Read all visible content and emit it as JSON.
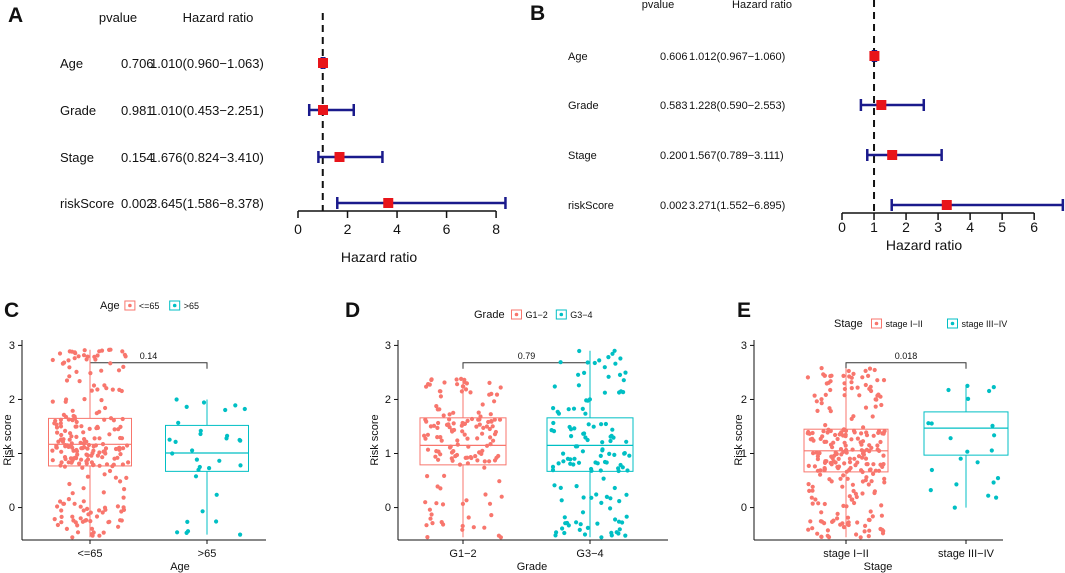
{
  "colors": {
    "ci": "#1a1a8c",
    "point": "#e8141a",
    "pink": "#f8766d",
    "teal": "#00bfc4",
    "axis": "#111111"
  },
  "chart_data": [
    {
      "panel": "A",
      "type": "forest",
      "col_pvalue": "pvalue",
      "col_hr": "Hazard ratio",
      "xlabel": "Hazard ratio",
      "xlim": [
        0,
        8.4
      ],
      "ticks": [
        0,
        2,
        4,
        6,
        8
      ],
      "ticklabels": [
        "0",
        "2",
        "4",
        "6",
        "8"
      ],
      "ref_line": 1,
      "rows": [
        {
          "name": "Age",
          "p": "0.706",
          "hr_text": "1.010(0.960−1.063)",
          "hr": 1.01,
          "lo": 0.96,
          "hi": 1.063
        },
        {
          "name": "Grade",
          "p": "0.981",
          "hr_text": "1.010(0.453−2.251)",
          "hr": 1.01,
          "lo": 0.453,
          "hi": 2.251
        },
        {
          "name": "Stage",
          "p": "0.154",
          "hr_text": "1.676(0.824−3.410)",
          "hr": 1.676,
          "lo": 0.824,
          "hi": 3.41
        },
        {
          "name": "riskScore",
          "p": "0.002",
          "hr_text": "3.645(1.586−8.378)",
          "hr": 3.645,
          "lo": 1.586,
          "hi": 8.378
        }
      ]
    },
    {
      "panel": "B",
      "type": "forest",
      "col_pvalue": "pvalue",
      "col_hr": "Hazard ratio",
      "xlabel": "Hazard ratio",
      "xlim": [
        0,
        6.9
      ],
      "ticks": [
        0,
        1,
        2,
        3,
        4,
        5,
        6
      ],
      "ticklabels": [
        "0",
        "1",
        "2",
        "3",
        "4",
        "5",
        "6"
      ],
      "ref_line": 1,
      "rows": [
        {
          "name": "Age",
          "p": "0.606",
          "hr_text": "1.012(0.967−1.060)",
          "hr": 1.012,
          "lo": 0.967,
          "hi": 1.06
        },
        {
          "name": "Grade",
          "p": "0.583",
          "hr_text": "1.228(0.590−2.553)",
          "hr": 1.228,
          "lo": 0.59,
          "hi": 2.553
        },
        {
          "name": "Stage",
          "p": "0.200",
          "hr_text": "1.567(0.789−3.111)",
          "hr": 1.567,
          "lo": 0.789,
          "hi": 3.111
        },
        {
          "name": "riskScore",
          "p": "0.002",
          "hr_text": "3.271(1.552−6.895)",
          "hr": 3.271,
          "lo": 1.552,
          "hi": 6.895
        }
      ]
    },
    {
      "panel": "C",
      "type": "box",
      "legend_title": "Age",
      "xlabel": "Age",
      "ylabel": "Risk score",
      "ylim": [
        -0.6,
        3.1
      ],
      "yticks": [
        0,
        1,
        2,
        3
      ],
      "pvalue": "0.14",
      "groups": [
        {
          "name": "<=65",
          "color": "pink",
          "min": -0.55,
          "q1": 0.77,
          "median": 1.17,
          "q3": 1.65,
          "max": 2.92,
          "n": 240
        },
        {
          "name": ">65",
          "color": "teal",
          "min": -0.5,
          "q1": 0.67,
          "median": 1.01,
          "q3": 1.52,
          "max": 2.0,
          "n": 32
        }
      ]
    },
    {
      "panel": "D",
      "type": "box",
      "legend_title": "Grade",
      "xlabel": "Grade",
      "ylabel": "Risk score",
      "ylim": [
        -0.6,
        3.1
      ],
      "yticks": [
        0,
        1,
        2,
        3
      ],
      "pvalue": "0.79",
      "groups": [
        {
          "name": "G1−2",
          "color": "pink",
          "min": -0.55,
          "q1": 0.79,
          "median": 1.15,
          "q3": 1.66,
          "max": 2.38,
          "n": 150
        },
        {
          "name": "G3−4",
          "color": "teal",
          "min": -0.55,
          "q1": 0.67,
          "median": 1.15,
          "q3": 1.66,
          "max": 2.9,
          "n": 130
        }
      ]
    },
    {
      "panel": "E",
      "type": "box",
      "legend_title": "Stage",
      "xlabel": "Stage",
      "ylabel": "Risk score",
      "ylim": [
        -0.6,
        3.1
      ],
      "yticks": [
        0,
        1,
        2,
        3
      ],
      "pvalue": "0.018",
      "groups": [
        {
          "name": "stage I−II",
          "color": "pink",
          "min": -0.55,
          "q1": 0.66,
          "median": 1.05,
          "q3": 1.45,
          "max": 2.58,
          "n": 250
        },
        {
          "name": "stage III−IV",
          "color": "teal",
          "min": 0.0,
          "q1": 0.97,
          "median": 1.47,
          "q3": 1.77,
          "max": 2.25,
          "n": 22
        }
      ]
    }
  ]
}
